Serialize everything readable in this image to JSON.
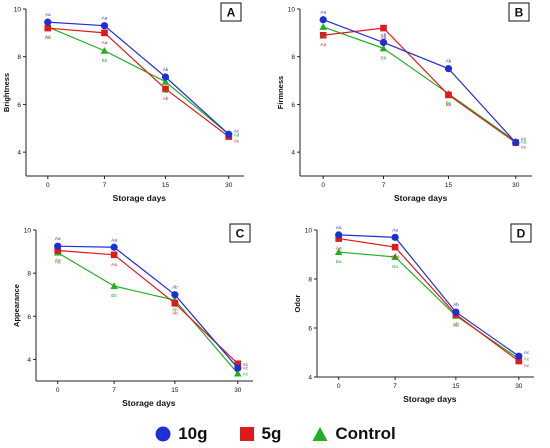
{
  "chart_data": [
    {
      "type": "line",
      "panel_letter": "A",
      "xlabel": "Storage days",
      "ylabel": "Brightness",
      "x": [
        0,
        7,
        15,
        30
      ],
      "ylim": [
        3,
        10
      ],
      "yticks": [
        4,
        6,
        8,
        10
      ],
      "series": [
        {
          "name": "10g",
          "values": [
            9.45,
            9.3,
            7.15,
            4.75
          ],
          "labels": [
            "Aa",
            "Aa",
            "Ab",
            "Ac"
          ]
        },
        {
          "name": "5g",
          "values": [
            9.2,
            9.0,
            6.65,
            4.65
          ],
          "labels": [
            "Aa",
            "Aa",
            "Ab",
            "Ac"
          ]
        },
        {
          "name": "Control",
          "values": [
            9.25,
            8.25,
            6.95,
            4.75
          ],
          "labels": [
            "Aa",
            "Bb",
            "Ab",
            "Ad"
          ]
        }
      ]
    },
    {
      "type": "line",
      "panel_letter": "B",
      "xlabel": "Storage days",
      "ylabel": "Firmness",
      "x": [
        0,
        7,
        15,
        30
      ],
      "ylim": [
        3,
        10
      ],
      "yticks": [
        4,
        6,
        8,
        10
      ],
      "series": [
        {
          "name": "10g",
          "values": [
            9.55,
            8.6,
            7.5,
            4.4
          ],
          "labels": [
            "Aa",
            "Ab",
            "Ab",
            "Ac"
          ]
        },
        {
          "name": "5g",
          "values": [
            8.9,
            9.2,
            6.4,
            4.4
          ],
          "labels": [
            "Aa",
            "Aa",
            "Bb",
            "Ac"
          ]
        },
        {
          "name": "Control",
          "values": [
            9.25,
            8.35,
            6.45,
            4.45
          ],
          "labels": [
            "Aa",
            "Bb",
            "Bc",
            "Ad"
          ]
        }
      ]
    },
    {
      "type": "line",
      "panel_letter": "C",
      "xlabel": "Storage days",
      "ylabel": "Appearance",
      "x": [
        0,
        7,
        15,
        30
      ],
      "ylim": [
        3,
        10
      ],
      "yticks": [
        4,
        6,
        8,
        10
      ],
      "series": [
        {
          "name": "10g",
          "values": [
            9.25,
            9.2,
            7.0,
            3.6
          ],
          "labels": [
            "Aa",
            "Aa",
            "Ab",
            "Ac"
          ]
        },
        {
          "name": "5g",
          "values": [
            9.05,
            8.85,
            6.6,
            3.8
          ],
          "labels": [
            "Aa",
            "Aa",
            "Ab",
            "Ac"
          ]
        },
        {
          "name": "Control",
          "values": [
            8.95,
            7.4,
            6.75,
            3.35
          ],
          "labels": [
            "Aa",
            "Bb",
            "Ab",
            "Ac"
          ]
        }
      ]
    },
    {
      "type": "line",
      "panel_letter": "D",
      "xlabel": "Storage days",
      "ylabel": "Odor",
      "x": [
        0,
        7,
        15,
        30
      ],
      "ylim": [
        4,
        10
      ],
      "yticks": [
        4,
        6,
        8,
        10
      ],
      "series": [
        {
          "name": "10g",
          "values": [
            9.8,
            9.7,
            6.65,
            4.85
          ],
          "labels": [
            "Aa",
            "Aa",
            "Ab",
            "Ac"
          ]
        },
        {
          "name": "5g",
          "values": [
            9.65,
            9.3,
            6.55,
            4.65
          ],
          "labels": [
            "Aa",
            "ABa",
            "Ab",
            "Ac"
          ]
        },
        {
          "name": "Control",
          "values": [
            9.1,
            8.9,
            6.5,
            4.75
          ],
          "labels": [
            "Ba",
            "Ba",
            "Ab",
            "Ac"
          ]
        }
      ]
    }
  ],
  "legend": {
    "items": [
      {
        "name": "10g",
        "color": "#1f2fd6",
        "marker": "circle"
      },
      {
        "name": "5g",
        "color": "#e0191b",
        "marker": "square"
      },
      {
        "name": "Control",
        "color": "#22b022",
        "marker": "triangle"
      }
    ]
  },
  "colors": {
    "10g": "#1f2fd6",
    "5g": "#e0191b",
    "Control": "#22b022"
  }
}
